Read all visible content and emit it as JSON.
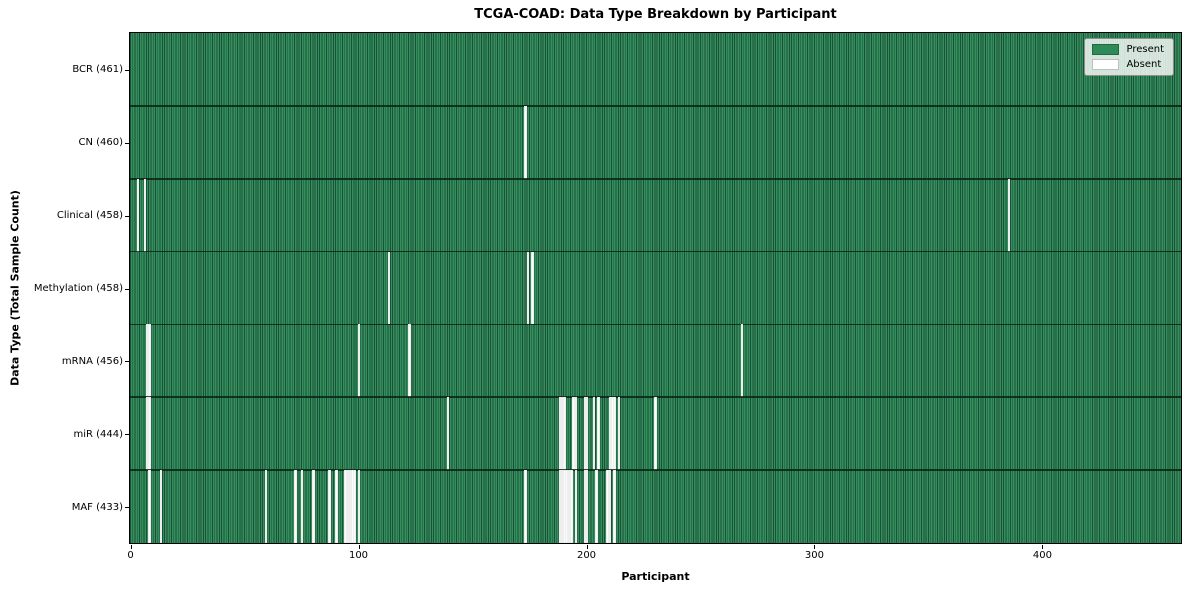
{
  "chart_data": {
    "type": "heatmap",
    "title": "TCGA-COAD: Data Type Breakdown by Participant",
    "xlabel": "Participant",
    "ylabel": "Data Type (Total Sample Count)",
    "x_ticks": [
      0,
      100,
      200,
      300,
      400
    ],
    "xlim": [
      0,
      461
    ],
    "n_participants": 461,
    "grid": false,
    "legend_position": "upper right",
    "legend": [
      {
        "name": "present-swatch",
        "label": "Present",
        "color": "#2e8b57"
      },
      {
        "name": "absent-swatch",
        "label": "Absent",
        "color": "#ffffff"
      }
    ],
    "colors": {
      "present_fill": "#338f5e",
      "bar_edge": "#1c5036",
      "absent_fill": "#ffffff",
      "row_separator": "#0a1e12",
      "plot_border": "#000000"
    },
    "rows": [
      {
        "label": "BCR (461)",
        "data_type": "BCR",
        "present_count": 461,
        "absent_participants": []
      },
      {
        "label": "CN (460)",
        "data_type": "CN",
        "present_count": 460,
        "absent_participants": [
          173
        ]
      },
      {
        "label": "Clinical (458)",
        "data_type": "Clinical",
        "present_count": 458,
        "absent_participants": [
          3,
          6,
          385
        ]
      },
      {
        "label": "Methylation (458)",
        "data_type": "Methylation",
        "present_count": 458,
        "absent_participants": [
          113,
          174,
          176
        ]
      },
      {
        "label": "mRNA (456)",
        "data_type": "mRNA",
        "present_count": 456,
        "absent_participants": [
          7,
          8,
          100,
          122,
          268
        ]
      },
      {
        "label": "miR (444)",
        "data_type": "miR",
        "present_count": 444,
        "absent_participants": [
          7,
          8,
          139,
          188,
          189,
          190,
          194,
          195,
          199,
          200,
          203,
          205,
          210,
          211,
          212,
          214,
          230
        ]
      },
      {
        "label": "MAF (433)",
        "data_type": "MAF",
        "present_count": 433,
        "absent_participants": [
          8,
          13,
          59,
          72,
          75,
          80,
          87,
          90,
          94,
          95,
          96,
          97,
          98,
          100,
          173,
          188,
          189,
          190,
          191,
          192,
          193,
          195,
          199,
          200,
          204,
          209,
          210,
          212
        ]
      }
    ]
  }
}
